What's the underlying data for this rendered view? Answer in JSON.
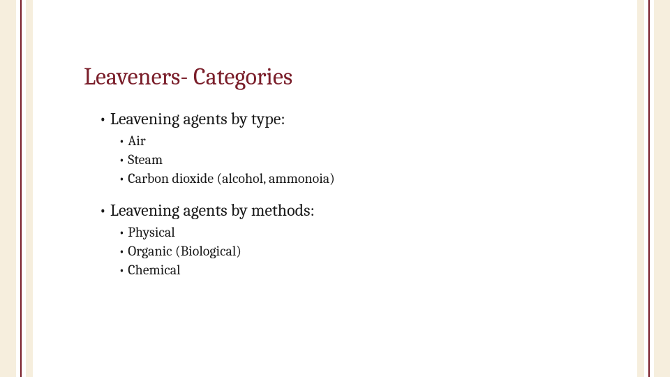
{
  "colors": {
    "band_fill": "#f6eedd",
    "band_line": "#7a1e2a",
    "title": "#7a1e2a",
    "body": "#1a1a1a",
    "background": "#ffffff"
  },
  "typography": {
    "title_fontsize_pt": 26,
    "l1_fontsize_pt": 18,
    "l2_fontsize_pt": 15,
    "font_family": "Cambria / serif"
  },
  "slide": {
    "title": "Leaveners- Categories",
    "sections": [
      {
        "heading": "Leavening agents by type:",
        "items": [
          "Air",
          "Steam",
          "Carbon dioxide (alcohol, ammonoia)"
        ]
      },
      {
        "heading": "Leavening agents by methods:",
        "items": [
          "Physical",
          "Organic (Biological)",
          "Chemical"
        ]
      }
    ]
  }
}
